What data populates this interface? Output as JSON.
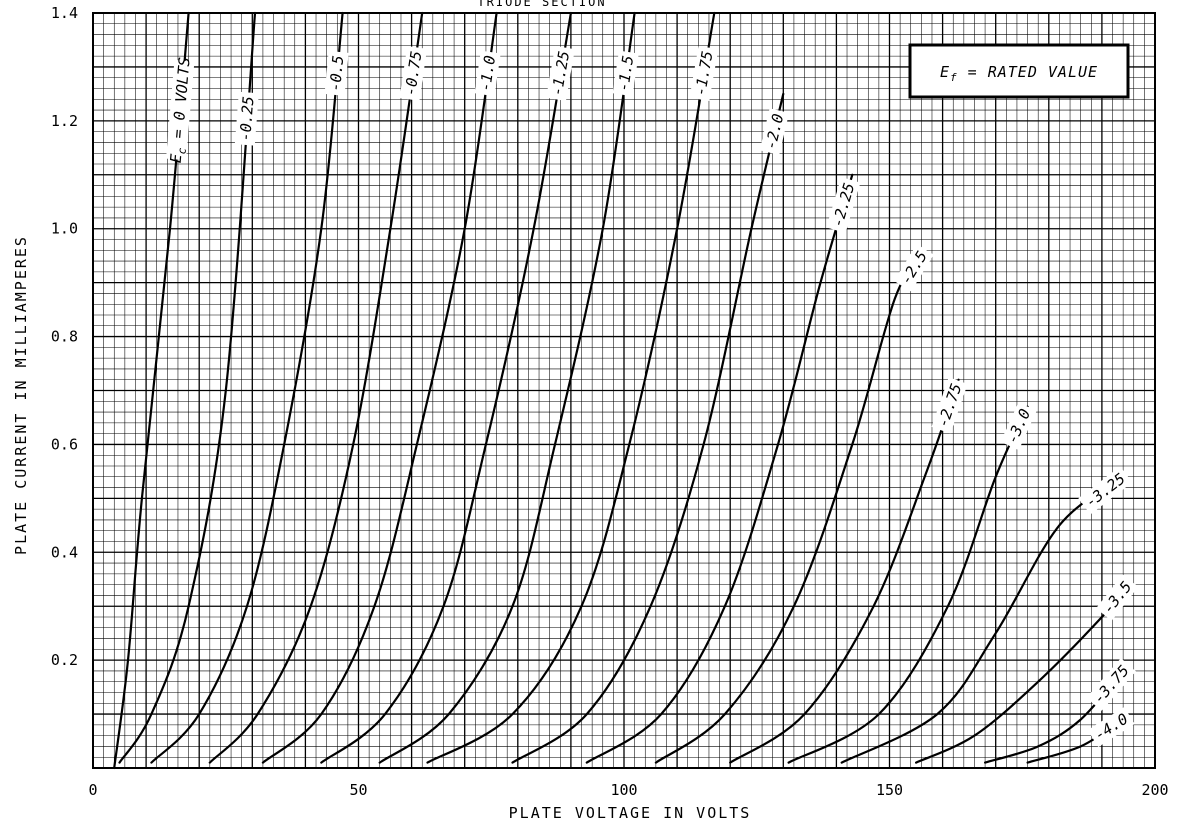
{
  "header": "TRIODE SECTION",
  "legend": {
    "pre": "E",
    "sub": "f",
    "post": " = RATED VALUE"
  },
  "chart_data": {
    "type": "line",
    "xlabel": "PLATE VOLTAGE IN VOLTS",
    "ylabel": "PLATE CURRENT IN MILLIAMPERES",
    "xlim": [
      0,
      200
    ],
    "ylim": [
      0,
      1.4
    ],
    "x_ticks": [
      "0",
      "50",
      "100",
      "150",
      "200"
    ],
    "y_ticks": [
      "0.2",
      "0.4",
      "0.6",
      "0.8",
      "1.0",
      "1.2",
      "1.4"
    ],
    "grid": true,
    "series": [
      {
        "name": "Ec = 0 VOLTS",
        "label": "= 0 VOLTS",
        "points": [
          [
            4,
            0
          ],
          [
            6.6,
            0.2
          ],
          [
            9.2,
            0.5
          ],
          [
            14.5,
            1.0
          ],
          [
            18.0,
            1.4
          ]
        ]
      },
      {
        "name": "-0.25",
        "label": "-0.25",
        "points": [
          [
            5,
            0.01
          ],
          [
            11,
            0.1
          ],
          [
            18,
            0.3
          ],
          [
            25,
            0.7
          ],
          [
            30.5,
            1.4
          ]
        ]
      },
      {
        "name": "-0.5",
        "label": "-0.5",
        "points": [
          [
            11,
            0.01
          ],
          [
            20,
            0.1
          ],
          [
            29,
            0.3
          ],
          [
            36,
            0.6
          ],
          [
            43,
            1.0
          ],
          [
            47,
            1.4
          ]
        ]
      },
      {
        "name": "-0.75",
        "label": "-0.75",
        "points": [
          [
            22,
            0.01
          ],
          [
            31,
            0.1
          ],
          [
            41,
            0.3
          ],
          [
            49,
            0.6
          ],
          [
            56,
            1.0
          ],
          [
            62,
            1.4
          ]
        ]
      },
      {
        "name": "-1.0",
        "label": "-1.0",
        "points": [
          [
            32,
            0.01
          ],
          [
            43,
            0.1
          ],
          [
            53,
            0.3
          ],
          [
            61,
            0.6
          ],
          [
            70,
            1.0
          ],
          [
            76,
            1.4
          ]
        ]
      },
      {
        "name": "-1.25",
        "label": "-1.25",
        "points": [
          [
            43,
            0.01
          ],
          [
            55,
            0.1
          ],
          [
            66,
            0.3
          ],
          [
            74,
            0.6
          ],
          [
            83,
            1.0
          ],
          [
            90,
            1.4
          ]
        ]
      },
      {
        "name": "-1.5",
        "label": "-1.5",
        "points": [
          [
            54,
            0.01
          ],
          [
            67,
            0.1
          ],
          [
            79,
            0.3
          ],
          [
            87,
            0.6
          ],
          [
            96,
            1.0
          ],
          [
            102,
            1.4
          ]
        ]
      },
      {
        "name": "-1.75",
        "label": "-1.75",
        "points": [
          [
            63,
            0.01
          ],
          [
            79,
            0.1
          ],
          [
            92,
            0.3
          ],
          [
            101,
            0.6
          ],
          [
            110,
            1.0
          ],
          [
            117,
            1.4
          ]
        ]
      },
      {
        "name": "-2.0",
        "label": "-2.0",
        "points": [
          [
            79,
            0.01
          ],
          [
            93,
            0.1
          ],
          [
            105,
            0.3
          ],
          [
            115,
            0.6
          ],
          [
            124,
            1.0
          ],
          [
            130,
            1.25
          ]
        ]
      },
      {
        "name": "-2.25",
        "label": "-2.25",
        "points": [
          [
            93,
            0.01
          ],
          [
            107,
            0.1
          ],
          [
            119,
            0.3
          ],
          [
            129,
            0.6
          ],
          [
            137,
            0.9
          ],
          [
            143,
            1.1
          ]
        ]
      },
      {
        "name": "-2.5",
        "label": "-2.5",
        "points": [
          [
            106,
            0.01
          ],
          [
            119,
            0.1
          ],
          [
            132,
            0.3
          ],
          [
            143,
            0.6
          ],
          [
            151,
            0.87
          ],
          [
            156,
            0.95
          ]
        ]
      },
      {
        "name": "-2.75",
        "label": "-2.75",
        "points": [
          [
            120,
            0.01
          ],
          [
            134,
            0.1
          ],
          [
            147,
            0.3
          ],
          [
            157,
            0.55
          ],
          [
            163,
            0.72
          ]
        ]
      },
      {
        "name": "-3.0",
        "label": "-3.0",
        "points": [
          [
            131,
            0.01
          ],
          [
            148,
            0.1
          ],
          [
            161,
            0.3
          ],
          [
            170,
            0.54
          ],
          [
            176,
            0.67
          ]
        ]
      },
      {
        "name": "-3.25",
        "label": "-3.25",
        "points": [
          [
            141,
            0.01
          ],
          [
            159,
            0.1
          ],
          [
            170,
            0.25
          ],
          [
            182,
            0.45
          ],
          [
            194,
            0.54
          ]
        ]
      },
      {
        "name": "-3.5",
        "label": "-3.5",
        "points": [
          [
            155,
            0.01
          ],
          [
            166,
            0.06
          ],
          [
            178,
            0.16
          ],
          [
            190,
            0.28
          ],
          [
            194,
            0.33
          ]
        ]
      },
      {
        "name": "-3.75",
        "label": "-3.75",
        "points": [
          [
            168,
            0.01
          ],
          [
            178,
            0.04
          ],
          [
            186,
            0.09
          ],
          [
            194,
            0.18
          ]
        ]
      },
      {
        "name": "-4.0",
        "label": "-4.0",
        "points": [
          [
            176,
            0.01
          ],
          [
            186,
            0.04
          ],
          [
            194,
            0.09
          ]
        ]
      }
    ]
  }
}
